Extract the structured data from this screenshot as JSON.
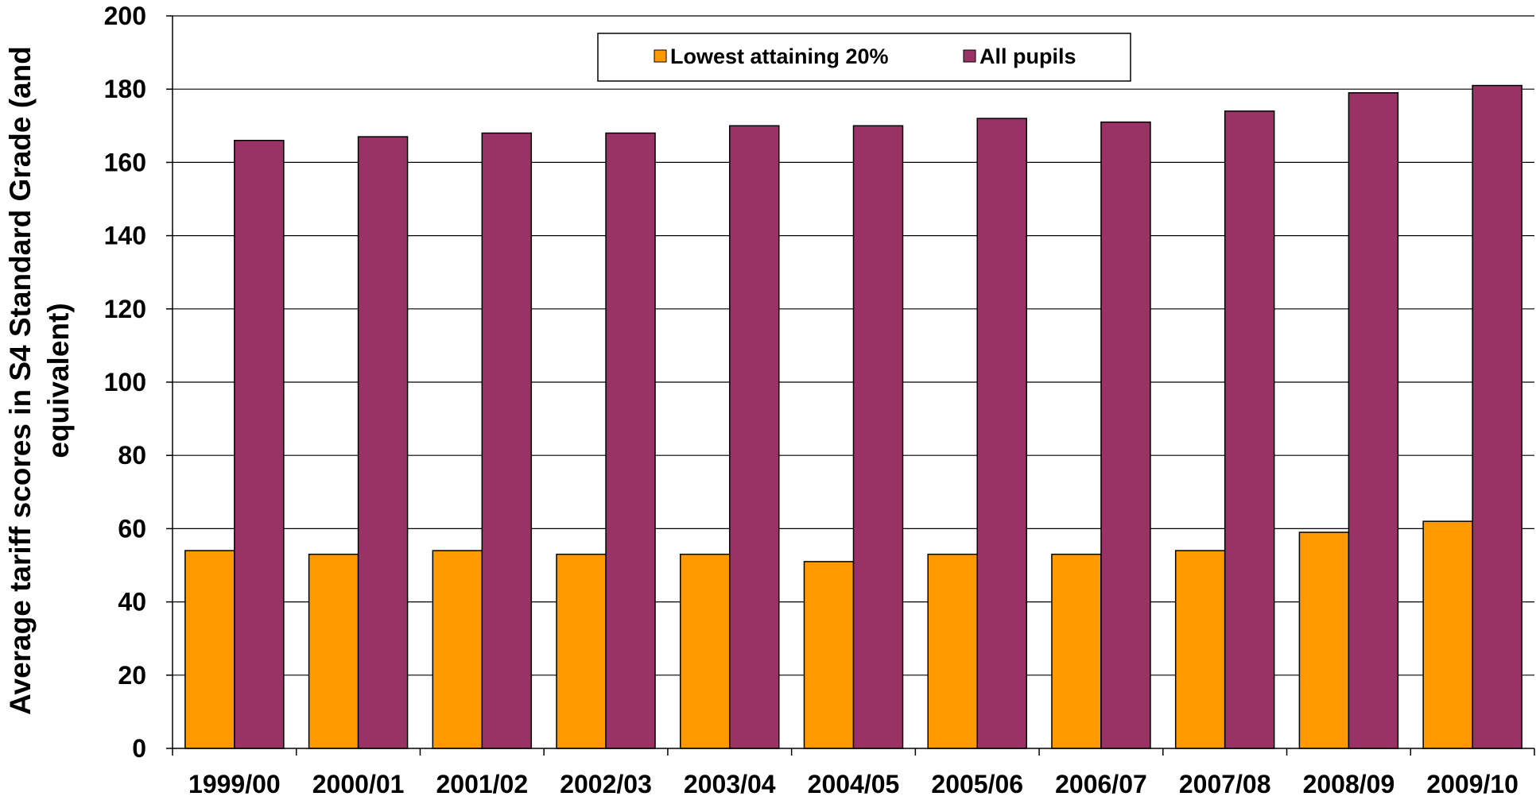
{
  "chart_data": {
    "type": "bar",
    "title": "",
    "xlabel": "",
    "ylabel": "Average tariff scores in S4 Standard Grade (and equivalent)",
    "ylabel_lines": [
      "Average tariff scores in S4 Standard Grade (and",
      "equivalent)"
    ],
    "categories": [
      "1999/00",
      "2000/01",
      "2001/02",
      "2002/03",
      "2003/04",
      "2004/05",
      "2005/06",
      "2006/07",
      "2007/08",
      "2008/09",
      "2009/10"
    ],
    "series": [
      {
        "name": "Lowest attaining 20%",
        "color": "#FF9900",
        "values": [
          54,
          53,
          54,
          53,
          53,
          51,
          53,
          53,
          54,
          59,
          62
        ]
      },
      {
        "name": "All pupils",
        "color": "#993366",
        "values": [
          166,
          167,
          168,
          168,
          170,
          170,
          172,
          171,
          174,
          179,
          181
        ]
      }
    ],
    "ylim": [
      0,
      200
    ],
    "yticks": [
      0,
      20,
      40,
      60,
      80,
      100,
      120,
      140,
      160,
      180,
      200
    ],
    "ytick_labels": [
      "0",
      "20",
      "40",
      "60",
      "80",
      "100",
      "120",
      "140",
      "160",
      "180",
      "200"
    ],
    "grid": true,
    "legend_position": "top-center"
  }
}
